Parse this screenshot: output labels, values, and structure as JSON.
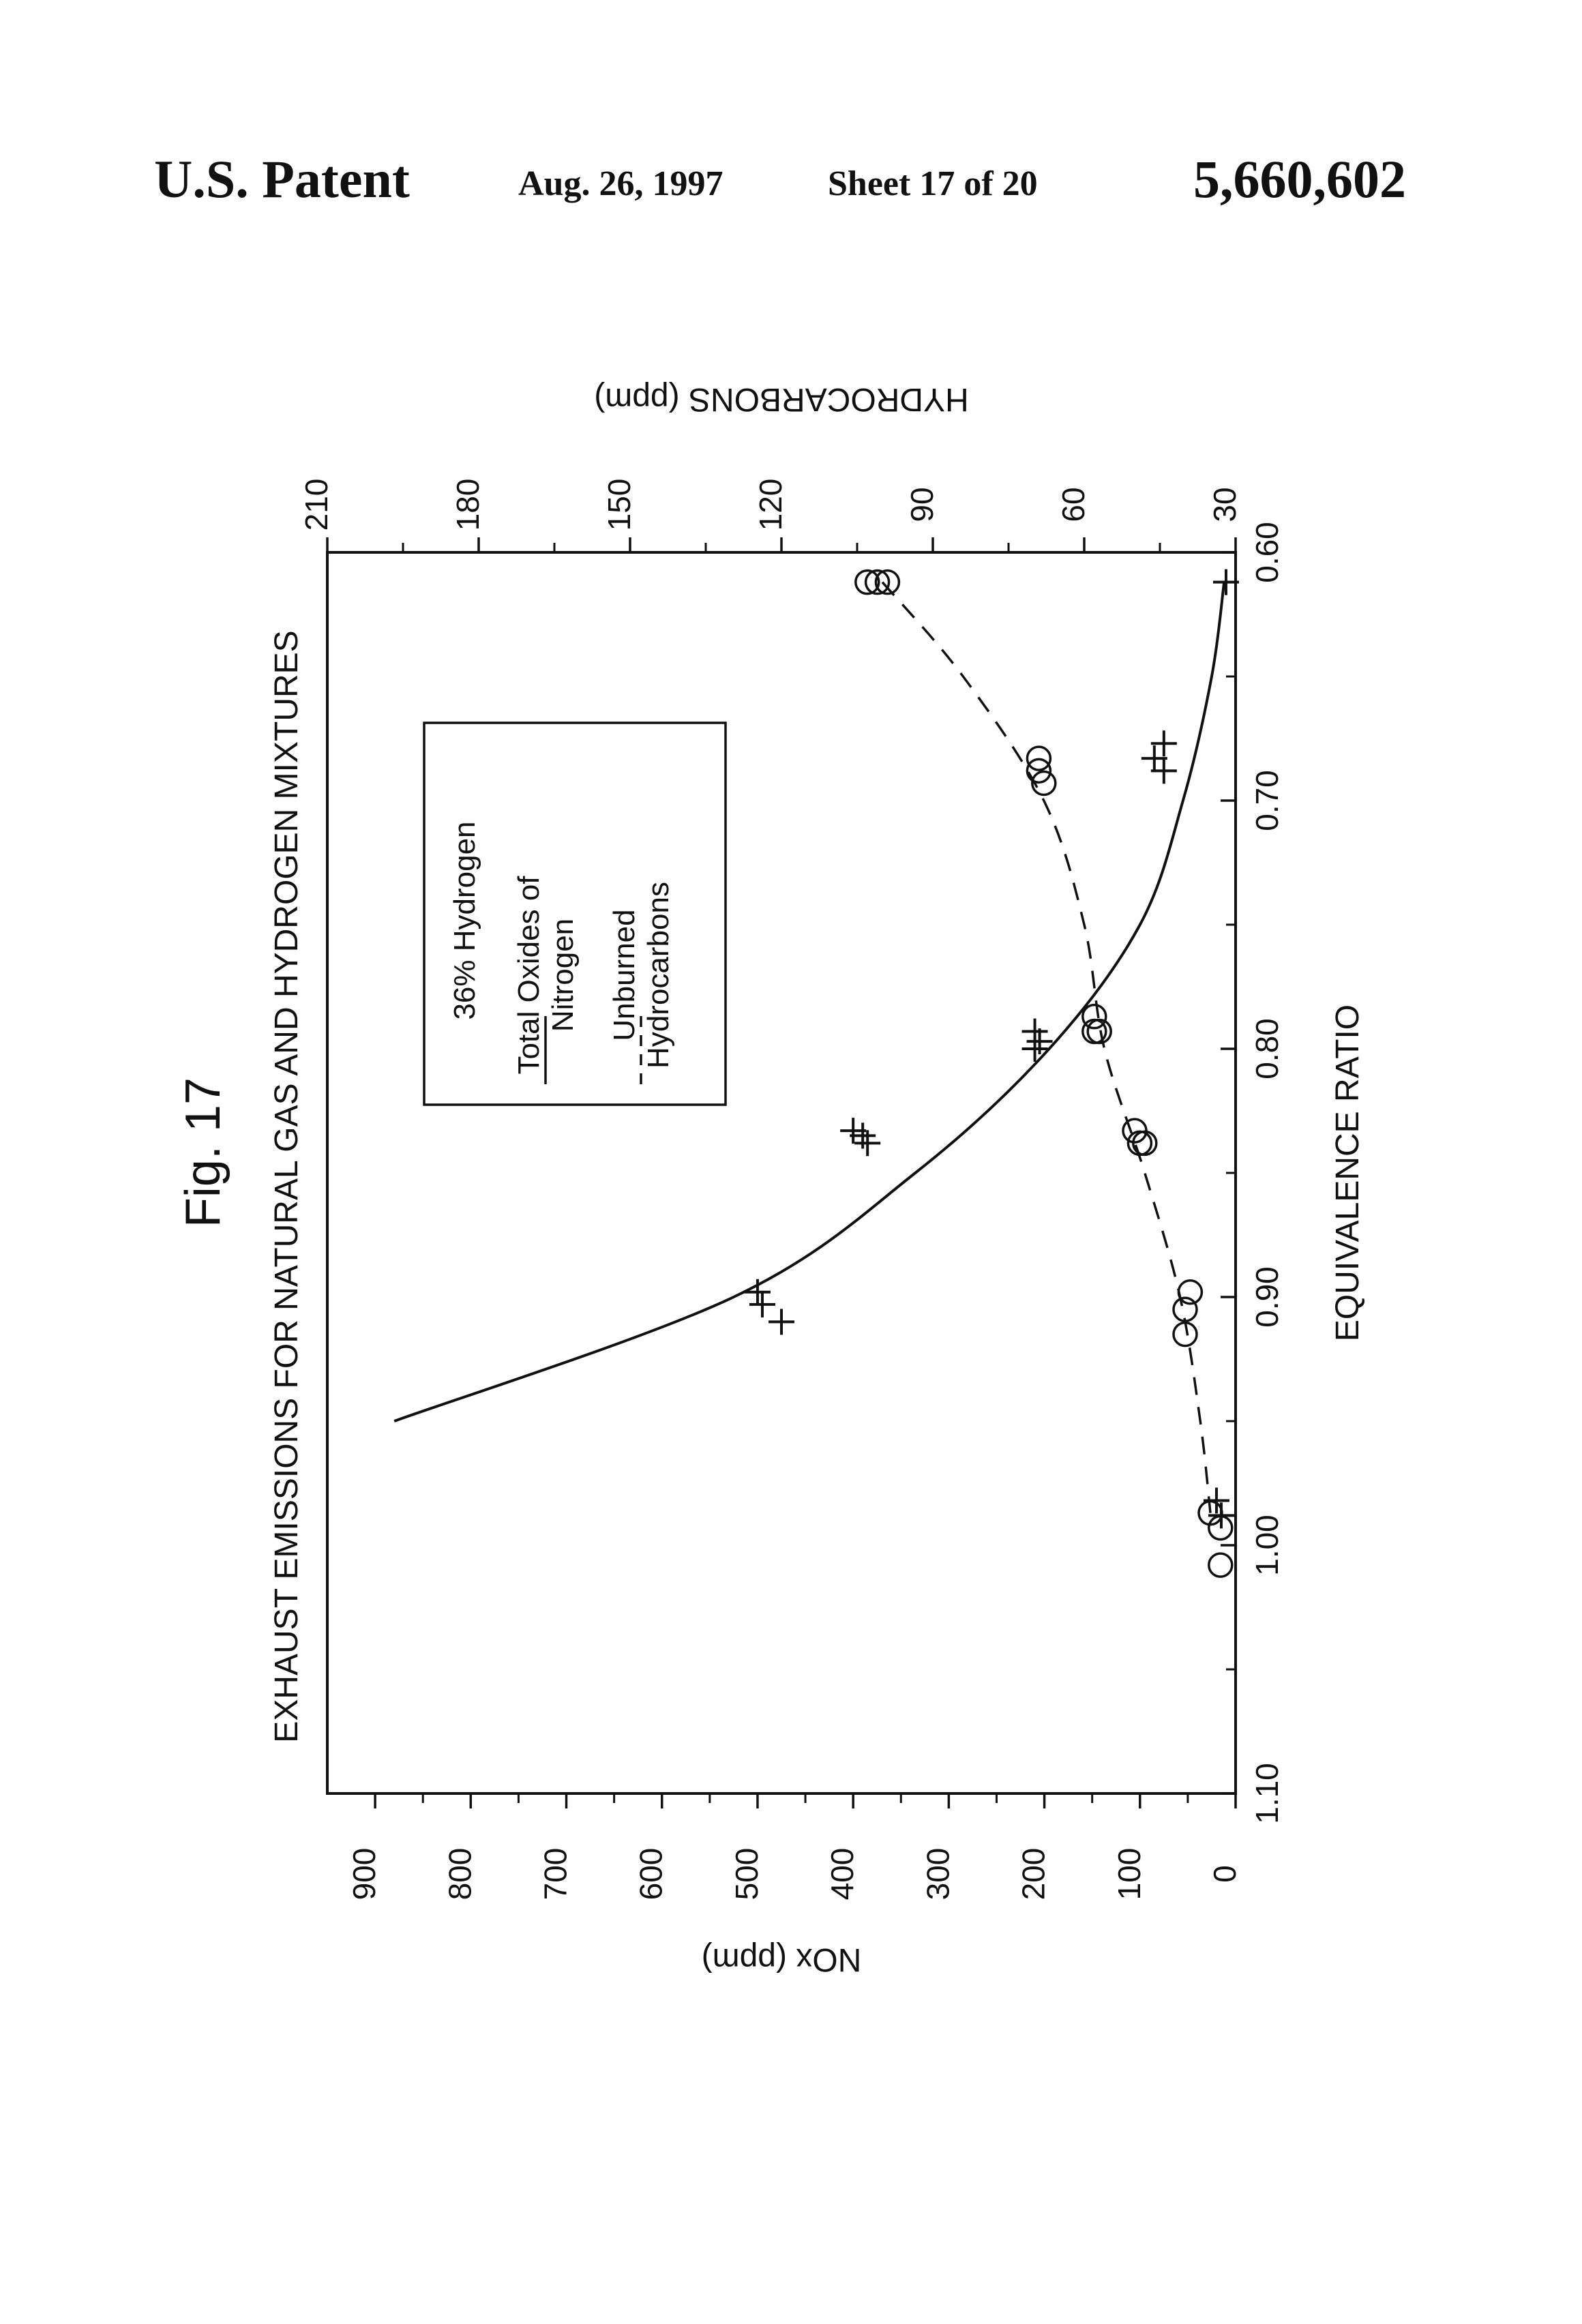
{
  "header": {
    "title": "U.S. Patent",
    "date": "Aug. 26, 1997",
    "sheet": "Sheet 17 of 20",
    "patent_number": "5,660,602"
  },
  "chart_data": {
    "type": "scatter",
    "figure_label": "Fig. 17",
    "title": "EXHAUST EMISSIONS FOR NATURAL GAS AND HYDROGEN MIXTURES",
    "xlabel": "EQUIVALENCE RATIO",
    "y_left_label": "NOx (ppm)",
    "y_right_label": "HYDROCARBONS (ppm)",
    "xlim": [
      0.6,
      1.1
    ],
    "y_left_lim": [
      0,
      950
    ],
    "y_right_lim": [
      30,
      210
    ],
    "x_ticks": [
      "0.60",
      "0.70",
      "0.80",
      "0.90",
      "1.00",
      "1.10"
    ],
    "y_left_ticks": [
      "0",
      "100",
      "200",
      "300",
      "400",
      "500",
      "600",
      "700",
      "800",
      "900"
    ],
    "y_right_ticks": [
      "30",
      "60",
      "90",
      "120",
      "150",
      "180",
      "210"
    ],
    "orientation": "rotated 90 degrees counter-clockwise on page",
    "grid": false,
    "legend": {
      "placement": "top-left",
      "title": "36% Hydrogen",
      "entries": [
        {
          "label": "Total Oxides of Nitrogen",
          "style": "solid"
        },
        {
          "label": "Unburned Hydrocarbons",
          "style": "dashed"
        }
      ]
    },
    "series": [
      {
        "name": "Total Oxides of Nitrogen",
        "axis": "left",
        "marker": "plus",
        "points": [
          {
            "x": 0.612,
            "y": 10
          },
          {
            "x": 0.677,
            "y": 75
          },
          {
            "x": 0.683,
            "y": 85
          },
          {
            "x": 0.688,
            "y": 75
          },
          {
            "x": 0.793,
            "y": 210
          },
          {
            "x": 0.797,
            "y": 205
          },
          {
            "x": 0.8,
            "y": 210
          },
          {
            "x": 0.833,
            "y": 400
          },
          {
            "x": 0.835,
            "y": 390
          },
          {
            "x": 0.838,
            "y": 385
          },
          {
            "x": 0.898,
            "y": 500
          },
          {
            "x": 0.903,
            "y": 495
          },
          {
            "x": 0.91,
            "y": 475
          },
          {
            "x": 0.982,
            "y": 20
          },
          {
            "x": 0.988,
            "y": 15
          }
        ],
        "fit": [
          {
            "x": 0.612,
            "y": 12
          },
          {
            "x": 0.65,
            "y": 25
          },
          {
            "x": 0.7,
            "y": 55
          },
          {
            "x": 0.75,
            "y": 100
          },
          {
            "x": 0.8,
            "y": 195
          },
          {
            "x": 0.85,
            "y": 335
          },
          {
            "x": 0.9,
            "y": 525
          },
          {
            "x": 0.95,
            "y": 880
          }
        ]
      },
      {
        "name": "Unburned Hydrocarbons",
        "axis": "right",
        "marker": "circle",
        "points": [
          {
            "x": 0.612,
            "y": 103
          },
          {
            "x": 0.612,
            "y": 101
          },
          {
            "x": 0.612,
            "y": 99
          },
          {
            "x": 0.683,
            "y": 69
          },
          {
            "x": 0.688,
            "y": 69
          },
          {
            "x": 0.693,
            "y": 68
          },
          {
            "x": 0.787,
            "y": 58
          },
          {
            "x": 0.793,
            "y": 58
          },
          {
            "x": 0.793,
            "y": 57
          },
          {
            "x": 0.833,
            "y": 50
          },
          {
            "x": 0.838,
            "y": 49
          },
          {
            "x": 0.838,
            "y": 48
          },
          {
            "x": 0.898,
            "y": 39
          },
          {
            "x": 0.905,
            "y": 40
          },
          {
            "x": 0.915,
            "y": 40
          },
          {
            "x": 0.987,
            "y": 35
          },
          {
            "x": 0.993,
            "y": 33
          },
          {
            "x": 1.008,
            "y": 33
          }
        ],
        "fit": [
          {
            "x": 0.612,
            "y": 100
          },
          {
            "x": 0.65,
            "y": 84
          },
          {
            "x": 0.7,
            "y": 68
          },
          {
            "x": 0.75,
            "y": 60
          },
          {
            "x": 0.8,
            "y": 56
          },
          {
            "x": 0.85,
            "y": 48
          },
          {
            "x": 0.9,
            "y": 41
          },
          {
            "x": 0.95,
            "y": 37
          },
          {
            "x": 0.987,
            "y": 35
          }
        ]
      }
    ]
  }
}
